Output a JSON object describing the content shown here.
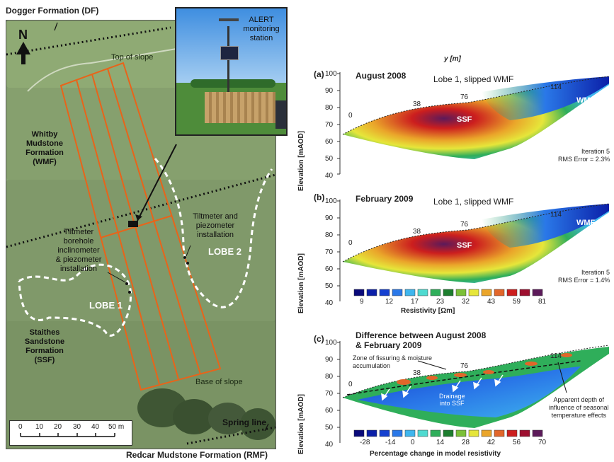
{
  "header": {
    "top_formation": "Dogger Formation (DF)",
    "bottom_formation": "Redcar Mudstone Formation (RMF)"
  },
  "map": {
    "north_label": "N",
    "labels": {
      "top_of_slope": "Top of slope",
      "base_of_slope": "Base of slope",
      "spring_line": "Spring line",
      "wmf": "Whitby\nMudstone\nFormation\n(WMF)",
      "ssf": "Staithes\nSandstone\nFormation\n(SSF)",
      "lobe1": "LOBE 1",
      "lobe2": "LOBE 2",
      "tilt_piezo": "Tiltmeter and\npiezometer\ninstallation",
      "tilt_borehole": "Tiltmeter\nborehole\ninclinometer\n& piezometer\ninstallation"
    },
    "scale": {
      "ticks": [
        "0",
        "10",
        "20",
        "30",
        "40",
        "50 m"
      ]
    }
  },
  "photo": {
    "label": "ALERT\nmonitoring\nstation"
  },
  "sections": {
    "y_axis_title": "y [m]",
    "elevation_label": "Elevation [mAOD]",
    "elev_ticks": [
      "100",
      "90",
      "80",
      "70",
      "60",
      "50",
      "40"
    ],
    "surface_ticks": [
      "0",
      "38",
      "76",
      "114"
    ],
    "panels": [
      {
        "id": "(a)",
        "title": "August 2008",
        "annotation": "Lobe 1, slipped WMF",
        "wmf": "WMF",
        "ssf": "SSF",
        "iteration": "Iteration 5",
        "rms": "RMS Error = 2.3%"
      },
      {
        "id": "(b)",
        "title": "February 2009",
        "annotation": "Lobe 1, slipped WMF",
        "wmf": "WMF",
        "ssf": "SSF",
        "iteration": "Iteration 5",
        "rms": "RMS Error = 1.4%"
      },
      {
        "id": "(c)",
        "title": "Difference between August 2008\n& February 2009",
        "zone_label": "Zone of fissuring & moisture\naccumulation",
        "drainage": "Drainage\ninto SSF",
        "apparent_depth": "Apparent depth of\ninfluence of seasonal\ntemperature effects"
      }
    ],
    "resistivity_scale": {
      "ticks": [
        "9",
        "12",
        "17",
        "23",
        "32",
        "43",
        "59",
        "81"
      ],
      "label": "Resistivity [Ωm]",
      "colors": [
        "#0a0a7a",
        "#0b1fa8",
        "#1540d0",
        "#2a78e8",
        "#3fb6ee",
        "#4fdad0",
        "#2fae5a",
        "#1c7e2e",
        "#7bc038",
        "#e6e63a",
        "#eaa52a",
        "#e2662a",
        "#cc1e1e",
        "#9e1030",
        "#5c1a5a"
      ]
    },
    "change_scale": {
      "ticks": [
        "-28",
        "-14",
        "0",
        "14",
        "28",
        "42",
        "56",
        "70"
      ],
      "label": "Percentage change in model resistivity",
      "colors": [
        "#0a0a7a",
        "#0b1fa8",
        "#1540d0",
        "#2a78e8",
        "#3fb6ee",
        "#4fdad0",
        "#2fae5a",
        "#1c7e2e",
        "#7bc038",
        "#e6e63a",
        "#eaa52a",
        "#e2662a",
        "#cc1e1e",
        "#9e1030",
        "#5c1a5a"
      ]
    }
  }
}
